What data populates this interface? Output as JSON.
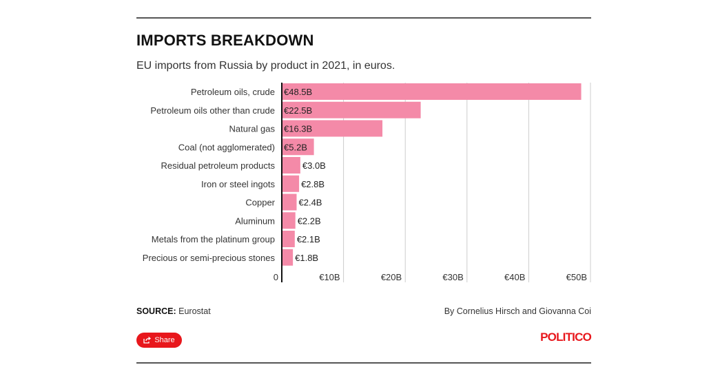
{
  "header": {
    "title": "IMPORTS BREAKDOWN",
    "subtitle": "EU imports from Russia by product in 2021, in euros."
  },
  "footer": {
    "source_label": "SOURCE:",
    "source_value": "Eurostat",
    "byline": "By Cornelius Hirsch and Giovanna Coi",
    "share_label": "Share",
    "logo_text": "POLITICO"
  },
  "colors": {
    "bar": "#f48aa8",
    "grid": "#cccccc",
    "axis": "#111111",
    "brand": "#e8171c"
  },
  "icons": {
    "share": "share-icon"
  },
  "chart_data": {
    "type": "bar",
    "orientation": "horizontal",
    "categories": [
      "Petroleum oils, crude",
      "Petroleum oils other than crude",
      "Natural gas",
      "Coal (not agglomerated)",
      "Residual petroleum products",
      "Iron or steel ingots",
      "Copper",
      "Aluminum",
      "Metals from the platinum group",
      "Precious or semi-precious stones"
    ],
    "values": [
      48.5,
      22.5,
      16.3,
      5.2,
      3.0,
      2.8,
      2.4,
      2.2,
      2.1,
      1.8
    ],
    "value_labels": [
      "€48.5B",
      "€22.5B",
      "€16.3B",
      "€5.2B",
      "€3.0B",
      "€2.8B",
      "€2.4B",
      "€2.2B",
      "€2.1B",
      "€1.8B"
    ],
    "xticks": [
      0,
      10,
      20,
      30,
      40,
      50
    ],
    "xtick_labels": [
      "0",
      "€10B",
      "€20B",
      "€30B",
      "€40B",
      "€50B"
    ],
    "xlim": [
      0,
      50
    ],
    "grid": true
  }
}
